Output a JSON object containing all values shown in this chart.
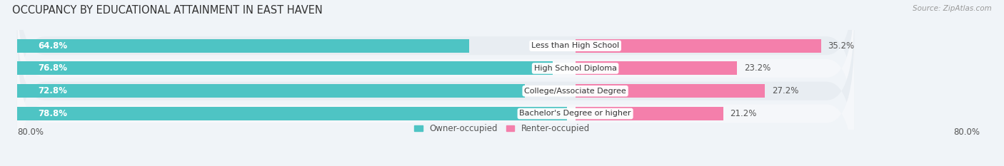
{
  "title": "OCCUPANCY BY EDUCATIONAL ATTAINMENT IN EAST HAVEN",
  "source": "Source: ZipAtlas.com",
  "categories": [
    "Less than High School",
    "High School Diploma",
    "College/Associate Degree",
    "Bachelor's Degree or higher"
  ],
  "owner_pct": [
    64.8,
    76.8,
    72.8,
    78.8
  ],
  "renter_pct": [
    35.2,
    23.2,
    27.2,
    21.2
  ],
  "owner_color": "#4ec4c4",
  "renter_color": "#f47fab",
  "row_bg_color": "#e8edf2",
  "row_alt_bg_color": "#f5f7fa",
  "fig_bg_color": "#f0f4f8",
  "axis_label_left": "80.0%",
  "axis_label_right": "80.0%",
  "title_fontsize": 10.5,
  "label_fontsize": 8.5,
  "cat_fontsize": 8.0,
  "pct_fontsize": 8.5,
  "bar_height": 0.6,
  "max_owner": 80.0,
  "max_renter": 40.0,
  "legend_owner": "Owner-occupied",
  "legend_renter": "Renter-occupied"
}
